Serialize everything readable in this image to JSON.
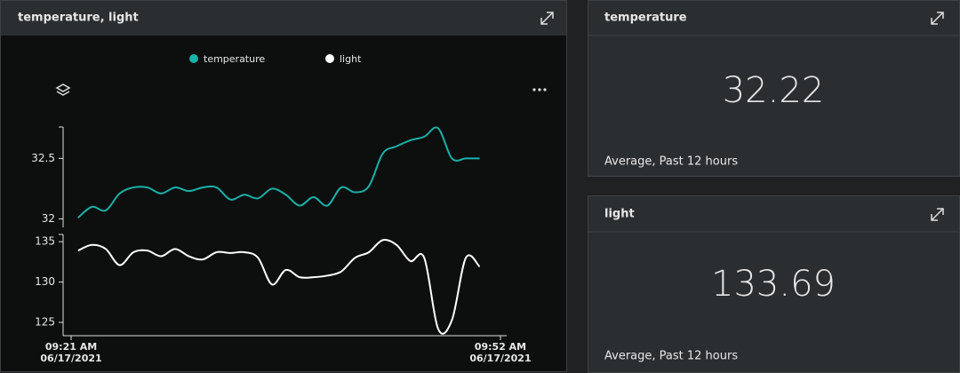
{
  "tiles": [
    {
      "title": "temperature, light"
    },
    {
      "title": "temperature",
      "value": 32.22,
      "footer": "Average, Past 12 hours"
    },
    {
      "title": "light",
      "value": 133.69,
      "footer": "Average, Past 12 hours"
    }
  ],
  "chart_data": {
    "type": "line",
    "x": [
      0.5,
      1.5,
      2.5,
      3.5,
      4.5,
      5.5,
      6.5,
      7.5,
      8.5,
      9.5,
      10.5,
      11.5,
      12.5,
      13.5,
      14.5,
      15.5,
      16.5,
      17.5,
      18.5,
      19.5,
      20.5,
      21.5,
      22.5,
      23.5,
      24.5,
      25.5,
      26.5,
      27.5,
      28.5,
      29.5
    ],
    "xlim": [
      -0.58,
      31.45
    ],
    "xticks": [
      {
        "value": 0,
        "label": [
          "09:21 AM",
          "06/17/2021"
        ]
      },
      {
        "value": 31,
        "label": [
          "09:52 AM",
          "06/17/2021"
        ]
      }
    ],
    "series": [
      {
        "name": "temperature",
        "color": "#1ab1a8",
        "axis": "y",
        "values": [
          32.01,
          32.1,
          32.07,
          32.21,
          32.26,
          32.26,
          32.21,
          32.26,
          32.23,
          32.26,
          32.26,
          32.16,
          32.2,
          32.17,
          32.25,
          32.2,
          32.11,
          32.18,
          32.11,
          32.26,
          32.22,
          32.27,
          32.54,
          32.6,
          32.65,
          32.68,
          32.75,
          32.5,
          32.5,
          32.5
        ]
      },
      {
        "name": "light",
        "color": "#ffffff",
        "axis": "y2",
        "values": [
          133.9,
          134.6,
          134.1,
          132.1,
          133.7,
          133.9,
          133.2,
          134.1,
          133.2,
          132.8,
          133.7,
          133.6,
          133.7,
          133.0,
          129.7,
          131.5,
          130.6,
          130.6,
          130.8,
          131.3,
          133.0,
          133.7,
          135.2,
          134.6,
          132.6,
          133.0,
          124.2,
          125.3,
          133.0,
          131.9
        ]
      }
    ],
    "ylim": [
      31.93,
      32.76
    ],
    "yticks": [
      32,
      32.5
    ],
    "y2lim": [
      123.35,
      135.9
    ],
    "y2ticks": [
      125,
      130,
      135
    ]
  }
}
